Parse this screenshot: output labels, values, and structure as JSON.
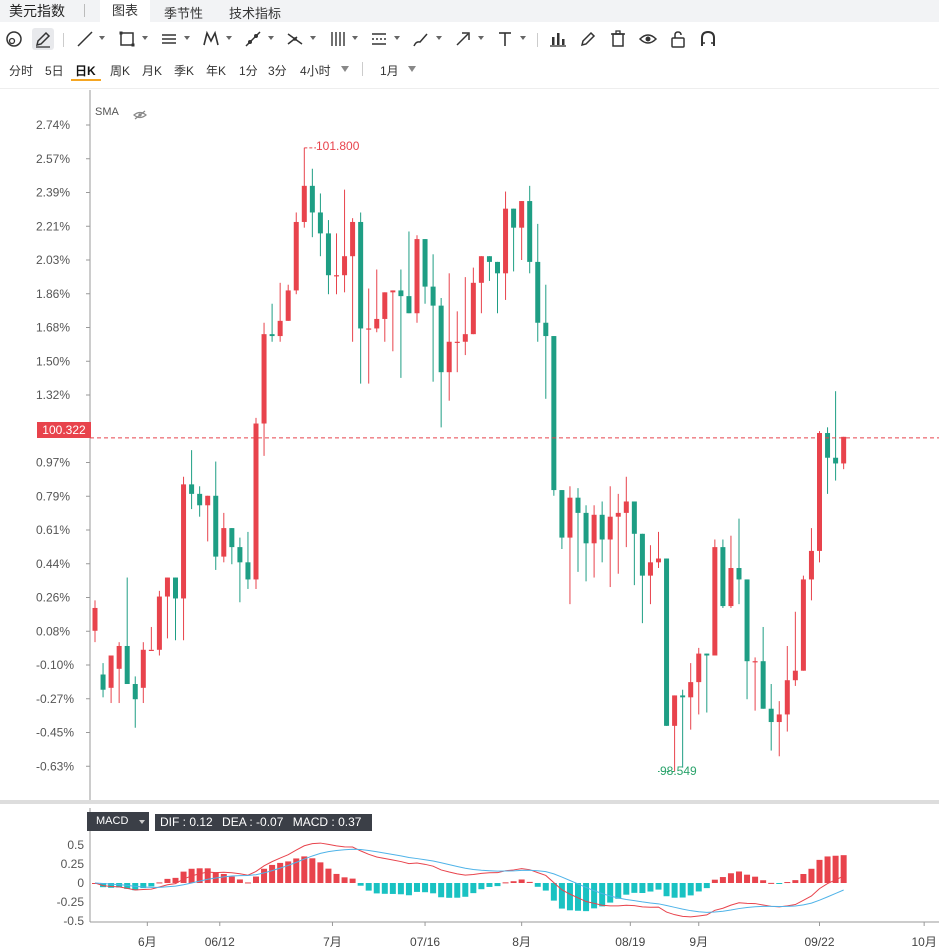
{
  "app": {
    "title": "美元指数"
  },
  "tabs": [
    {
      "label": "图表",
      "active": true
    },
    {
      "label": "季节性",
      "active": false
    },
    {
      "label": "技术指标",
      "active": false
    }
  ],
  "toolbar": {
    "tools": [
      "cursor-tool-icon",
      "pencil-icon",
      "line-icon",
      "rectangle-icon",
      "horizontal-lines-icon",
      "pattern-icon",
      "trend-icon",
      "fib-icon",
      "gann-icon",
      "channel-icon",
      "brush-icon",
      "arrow-icon",
      "text-icon",
      "chart-settings-icon",
      "edit-icon",
      "trash-icon",
      "eye-icon",
      "unlock-icon",
      "magnet-icon"
    ]
  },
  "periods": {
    "items": [
      "分时",
      "5日",
      "日K",
      "周K",
      "月K",
      "季K",
      "年K",
      "1分",
      "3分",
      "4小时"
    ],
    "active": "日K",
    "range": "1月"
  },
  "indicator": {
    "sma_label": "SMA"
  },
  "price": {
    "current": "100.322",
    "high": "101.800",
    "low": "98.549"
  },
  "macd": {
    "selector": "MACD",
    "dif_label": "DIF : 0.12",
    "dea_label": "DEA : -0.07",
    "macd_label": "MACD : 0.37",
    "yticks": [
      "0.5",
      "0.25",
      "0",
      "-0.25",
      "-0.5"
    ]
  },
  "chart_data": {
    "type": "candlestick",
    "y_axis_percent_ticks": [
      "2.74%",
      "2.57%",
      "2.39%",
      "2.21%",
      "2.03%",
      "1.86%",
      "1.68%",
      "1.50%",
      "1.32%",
      "1.14%",
      "0.97%",
      "0.79%",
      "0.61%",
      "0.44%",
      "0.26%",
      "0.08%",
      "-0.10%",
      "-0.27%",
      "-0.45%",
      "-0.63%"
    ],
    "x_ticks": [
      "6月",
      "06/12",
      "7月",
      "07/16",
      "8月",
      "08/19",
      "9月",
      "09/22",
      "10月"
    ],
    "up_color": "#e8434c",
    "down_color": "#1e9e84",
    "candles_pct": [
      [
        0.08,
        0.2,
        0.24,
        0.02
      ],
      [
        -0.15,
        -0.23,
        -0.09,
        -0.27
      ],
      [
        -0.22,
        -0.05,
        -0.05,
        -0.3
      ],
      [
        -0.12,
        0.0,
        0.02,
        -0.3
      ],
      [
        -0.0,
        -0.2,
        0.36,
        -0.2
      ],
      [
        -0.2,
        -0.28,
        -0.16,
        -0.43
      ],
      [
        -0.22,
        -0.02,
        0.02,
        -0.3
      ],
      [
        -0.02,
        -0.02,
        0.1,
        -0.02
      ],
      [
        -0.02,
        0.26,
        0.29,
        -0.05
      ],
      [
        0.26,
        0.36,
        0.36,
        0.04
      ],
      [
        0.36,
        0.25,
        0.36,
        0.03
      ],
      [
        0.25,
        0.85,
        0.89,
        0.03
      ],
      [
        0.85,
        0.8,
        1.03,
        0.72
      ],
      [
        0.8,
        0.74,
        0.84,
        0.68
      ],
      [
        0.74,
        0.79,
        0.79,
        0.55
      ],
      [
        0.79,
        0.47,
        0.97,
        0.4
      ],
      [
        0.47,
        0.62,
        0.7,
        0.44
      ],
      [
        0.62,
        0.52,
        0.62,
        0.43
      ],
      [
        0.52,
        0.44,
        0.57,
        0.23
      ],
      [
        0.44,
        0.35,
        0.6,
        0.3
      ],
      [
        0.35,
        1.17,
        1.2,
        0.3
      ],
      [
        1.17,
        1.64,
        1.7,
        1.0
      ],
      [
        1.64,
        1.63,
        1.8,
        1.6
      ],
      [
        1.63,
        1.71,
        1.91,
        1.6
      ],
      [
        1.71,
        1.87,
        1.9,
        1.75
      ],
      [
        1.87,
        2.23,
        2.28,
        1.85
      ],
      [
        2.23,
        2.42,
        2.62,
        2.2
      ],
      [
        2.42,
        2.28,
        2.51,
        2.15
      ],
      [
        2.28,
        2.17,
        2.38,
        2.05
      ],
      [
        2.17,
        1.95,
        2.24,
        1.85
      ],
      [
        1.95,
        1.95,
        2.17,
        1.85
      ],
      [
        1.95,
        2.05,
        2.4,
        1.86
      ],
      [
        2.05,
        2.23,
        2.25,
        1.6
      ],
      [
        2.23,
        1.67,
        2.28,
        1.38
      ],
      [
        1.67,
        1.67,
        1.88,
        1.38
      ],
      [
        1.67,
        1.72,
        1.98,
        1.65
      ],
      [
        1.72,
        1.86,
        1.85,
        1.6
      ],
      [
        1.86,
        1.87,
        1.85,
        1.55
      ],
      [
        1.87,
        1.84,
        1.98,
        1.41
      ],
      [
        1.84,
        1.75,
        2.18,
        1.8
      ],
      [
        1.75,
        2.14,
        2.16,
        1.7
      ],
      [
        2.14,
        1.89,
        2.14,
        1.8
      ],
      [
        1.89,
        1.79,
        2.06,
        1.39
      ],
      [
        1.79,
        1.44,
        1.83,
        1.15
      ],
      [
        1.44,
        1.6,
        1.96,
        1.29
      ],
      [
        1.6,
        1.6,
        1.76,
        1.44
      ],
      [
        1.6,
        1.64,
        1.94,
        1.53
      ],
      [
        1.64,
        1.91,
        1.99,
        1.67
      ],
      [
        1.91,
        2.05,
        2.03,
        1.75
      ],
      [
        2.05,
        2.02,
        2.05,
        1.92
      ],
      [
        2.02,
        1.96,
        1.96,
        1.75
      ],
      [
        1.96,
        2.3,
        2.39,
        1.82
      ],
      [
        2.3,
        2.2,
        2.29,
        1.97
      ],
      [
        2.2,
        2.34,
        2.34,
        2.03
      ],
      [
        2.34,
        2.02,
        2.42,
        1.96
      ],
      [
        2.02,
        1.7,
        2.22,
        1.6
      ],
      [
        1.7,
        1.63,
        1.9,
        1.3
      ],
      [
        1.63,
        0.82,
        1.63,
        0.79
      ],
      [
        0.82,
        0.57,
        0.79,
        0.51
      ],
      [
        0.57,
        0.78,
        0.84,
        0.22
      ],
      [
        0.78,
        0.7,
        0.83,
        0.39
      ],
      [
        0.7,
        0.54,
        0.74,
        0.34
      ],
      [
        0.54,
        0.69,
        0.74,
        0.36
      ],
      [
        0.69,
        0.56,
        0.76,
        0.44
      ],
      [
        0.56,
        0.68,
        0.84,
        0.31
      ],
      [
        0.68,
        0.7,
        0.8,
        0.38
      ],
      [
        0.7,
        0.76,
        0.89,
        0.52
      ],
      [
        0.76,
        0.59,
        0.73,
        0.32
      ],
      [
        0.59,
        0.37,
        0.5,
        0.12
      ],
      [
        0.37,
        0.44,
        0.53,
        0.22
      ],
      [
        0.44,
        0.46,
        0.6,
        0.41
      ],
      [
        0.46,
        -0.42,
        0.44,
        -0.42
      ],
      [
        -0.42,
        -0.26,
        -0.26,
        -0.66
      ],
      [
        -0.26,
        -0.27,
        -0.23,
        -0.64
      ],
      [
        -0.27,
        -0.19,
        -0.09,
        -0.44
      ],
      [
        -0.19,
        -0.04,
        -0.01,
        -0.36
      ],
      [
        -0.04,
        -0.05,
        -0.07,
        -0.35
      ],
      [
        -0.05,
        0.52,
        0.56,
        0.04
      ],
      [
        0.52,
        0.21,
        0.56,
        0.2
      ],
      [
        0.21,
        0.41,
        0.58,
        0.2
      ],
      [
        0.41,
        0.35,
        0.67,
        0.22
      ],
      [
        0.35,
        -0.08,
        0.32,
        -0.28
      ],
      [
        -0.08,
        -0.08,
        -0.06,
        -0.34
      ],
      [
        -0.08,
        -0.33,
        0.1,
        -0.32
      ],
      [
        -0.33,
        -0.4,
        -0.2,
        -0.55
      ],
      [
        -0.4,
        -0.36,
        -0.29,
        -0.58
      ],
      [
        -0.36,
        -0.18,
        0.0,
        -0.45
      ],
      [
        -0.18,
        -0.13,
        0.18,
        -0.21
      ],
      [
        -0.13,
        0.35,
        0.37,
        -0.06
      ],
      [
        0.35,
        0.5,
        0.62,
        0.24
      ],
      [
        0.5,
        1.12,
        1.13,
        0.44
      ],
      [
        1.12,
        0.99,
        1.15,
        0.8
      ],
      [
        0.99,
        0.96,
        1.34,
        0.87
      ],
      [
        0.96,
        1.1,
        1.1,
        0.93
      ]
    ]
  }
}
